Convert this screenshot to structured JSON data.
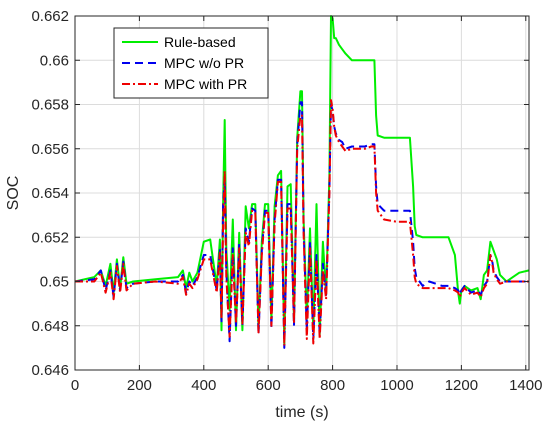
{
  "chart_data": {
    "type": "line",
    "title": "",
    "xlabel": "time (s)",
    "ylabel": "SOC",
    "xlim": [
      0,
      1410
    ],
    "ylim": [
      0.646,
      0.662
    ],
    "xticks": [
      0,
      200,
      400,
      600,
      800,
      1000,
      1200,
      1400
    ],
    "xtick_labels": [
      "0",
      "200",
      "400",
      "600",
      "800",
      "1000",
      "1200",
      "1400"
    ],
    "yticks": [
      0.646,
      0.648,
      0.65,
      0.652,
      0.654,
      0.656,
      0.658,
      0.66,
      0.662
    ],
    "ytick_labels": [
      "0.646",
      "0.648",
      "0.65",
      "0.652",
      "0.654",
      "0.656",
      "0.658",
      "0.66",
      "0.662"
    ],
    "grid": true,
    "legend_position": "top-left",
    "series": [
      {
        "name": "Rule-based",
        "color": "#00ee00",
        "dash": "solid",
        "x": [
          0,
          60,
          80,
          95,
          110,
          120,
          130,
          140,
          150,
          160,
          180,
          250,
          320,
          335,
          345,
          355,
          365,
          380,
          400,
          420,
          440,
          450,
          455,
          460,
          465,
          470,
          480,
          490,
          500,
          510,
          520,
          530,
          540,
          550,
          560,
          570,
          580,
          590,
          600,
          610,
          620,
          630,
          640,
          650,
          660,
          670,
          680,
          690,
          700,
          705,
          710,
          720,
          730,
          740,
          750,
          760,
          770,
          780,
          790,
          795,
          800,
          805,
          810,
          820,
          830,
          840,
          860,
          880,
          900,
          920,
          930,
          935,
          940,
          960,
          1000,
          1040,
          1050,
          1055,
          1060,
          1080,
          1100,
          1140,
          1160,
          1180,
          1190,
          1195,
          1200,
          1210,
          1230,
          1250,
          1260,
          1270,
          1280,
          1290,
          1295,
          1300,
          1310,
          1320,
          1340,
          1360,
          1380,
          1410
        ],
        "y": [
          0.65,
          0.6502,
          0.6505,
          0.6498,
          0.6508,
          0.6495,
          0.651,
          0.6497,
          0.6511,
          0.6499,
          0.65,
          0.6501,
          0.6502,
          0.6505,
          0.6497,
          0.6504,
          0.65,
          0.6504,
          0.6518,
          0.6519,
          0.6498,
          0.6519,
          0.6478,
          0.6535,
          0.6573,
          0.6515,
          0.6487,
          0.6528,
          0.6478,
          0.6522,
          0.6478,
          0.6534,
          0.6524,
          0.6535,
          0.6535,
          0.6479,
          0.6518,
          0.6535,
          0.6535,
          0.6482,
          0.6534,
          0.6548,
          0.655,
          0.6472,
          0.6543,
          0.6544,
          0.6482,
          0.6565,
          0.6586,
          0.6586,
          0.6528,
          0.6483,
          0.6524,
          0.6478,
          0.6535,
          0.6476,
          0.6518,
          0.6494,
          0.6548,
          0.662,
          0.6619,
          0.661,
          0.661,
          0.6607,
          0.6605,
          0.6603,
          0.66,
          0.66,
          0.66,
          0.66,
          0.66,
          0.6575,
          0.6566,
          0.6565,
          0.6565,
          0.6565,
          0.6543,
          0.6525,
          0.6521,
          0.652,
          0.652,
          0.652,
          0.652,
          0.6512,
          0.6495,
          0.649,
          0.6496,
          0.6498,
          0.6496,
          0.6497,
          0.6492,
          0.6503,
          0.6505,
          0.6518,
          0.6516,
          0.6514,
          0.651,
          0.6503,
          0.65,
          0.6502,
          0.6504,
          0.6505
        ]
      },
      {
        "name": "MPC w/o PR",
        "color": "#0000ee",
        "dash": "8,5",
        "x": [
          0,
          60,
          80,
          95,
          110,
          120,
          130,
          140,
          150,
          160,
          180,
          250,
          320,
          335,
          345,
          355,
          365,
          380,
          400,
          420,
          440,
          450,
          455,
          460,
          465,
          470,
          480,
          490,
          500,
          510,
          520,
          530,
          540,
          550,
          560,
          570,
          580,
          590,
          600,
          610,
          620,
          630,
          640,
          650,
          660,
          670,
          680,
          690,
          700,
          705,
          710,
          720,
          730,
          740,
          750,
          760,
          770,
          780,
          790,
          795,
          800,
          805,
          810,
          820,
          830,
          840,
          860,
          880,
          900,
          920,
          930,
          935,
          940,
          960,
          1000,
          1040,
          1050,
          1055,
          1060,
          1080,
          1100,
          1140,
          1160,
          1180,
          1190,
          1195,
          1200,
          1210,
          1230,
          1250,
          1260,
          1270,
          1280,
          1290,
          1295,
          1300,
          1310,
          1320,
          1340,
          1360,
          1380,
          1410
        ],
        "y": [
          0.65,
          0.6501,
          0.6505,
          0.6496,
          0.6505,
          0.6493,
          0.6508,
          0.6496,
          0.6509,
          0.6497,
          0.6499,
          0.65,
          0.65,
          0.6503,
          0.6495,
          0.65,
          0.6498,
          0.6502,
          0.6512,
          0.6512,
          0.6496,
          0.6515,
          0.6482,
          0.6535,
          0.6547,
          0.6505,
          0.6473,
          0.6515,
          0.648,
          0.6517,
          0.648,
          0.6524,
          0.6518,
          0.6533,
          0.6532,
          0.6476,
          0.6514,
          0.6532,
          0.6532,
          0.6479,
          0.6528,
          0.6546,
          0.6546,
          0.647,
          0.6535,
          0.6535,
          0.648,
          0.6562,
          0.6581,
          0.6581,
          0.6524,
          0.6478,
          0.6518,
          0.6474,
          0.6512,
          0.6476,
          0.6508,
          0.6494,
          0.6542,
          0.658,
          0.6577,
          0.657,
          0.6567,
          0.6564,
          0.6563,
          0.656,
          0.6561,
          0.6561,
          0.6561,
          0.6562,
          0.6562,
          0.6543,
          0.6535,
          0.6532,
          0.6532,
          0.6532,
          0.6518,
          0.6506,
          0.6502,
          0.6498,
          0.65,
          0.6498,
          0.6498,
          0.6497,
          0.6496,
          0.6494,
          0.6496,
          0.6498,
          0.6495,
          0.6496,
          0.6494,
          0.6498,
          0.65,
          0.6512,
          0.651,
          0.6505,
          0.6502,
          0.65,
          0.65,
          0.65,
          0.65,
          0.65
        ]
      },
      {
        "name": "MPC with PR",
        "color": "#ee0000",
        "dash": "8,3,2,3",
        "x": [
          0,
          60,
          80,
          95,
          110,
          120,
          130,
          140,
          150,
          160,
          180,
          250,
          320,
          335,
          345,
          355,
          365,
          380,
          400,
          420,
          440,
          450,
          455,
          460,
          465,
          470,
          480,
          490,
          500,
          510,
          520,
          530,
          540,
          550,
          560,
          570,
          580,
          590,
          600,
          610,
          620,
          630,
          640,
          650,
          660,
          670,
          680,
          690,
          700,
          705,
          710,
          720,
          730,
          740,
          750,
          760,
          770,
          780,
          790,
          795,
          800,
          805,
          810,
          820,
          830,
          840,
          860,
          880,
          900,
          920,
          930,
          935,
          940,
          960,
          1000,
          1040,
          1050,
          1055,
          1060,
          1080,
          1100,
          1140,
          1160,
          1180,
          1190,
          1195,
          1200,
          1210,
          1230,
          1250,
          1260,
          1270,
          1280,
          1290,
          1295,
          1300,
          1310,
          1320,
          1340,
          1360,
          1380,
          1410
        ],
        "y": [
          0.65,
          0.65,
          0.6504,
          0.6495,
          0.6504,
          0.6492,
          0.6507,
          0.6495,
          0.6508,
          0.6496,
          0.6499,
          0.65,
          0.6499,
          0.6502,
          0.6494,
          0.6499,
          0.6497,
          0.6501,
          0.651,
          0.651,
          0.6495,
          0.6513,
          0.6483,
          0.6525,
          0.655,
          0.6502,
          0.6475,
          0.6512,
          0.6481,
          0.6515,
          0.6481,
          0.6522,
          0.6516,
          0.6532,
          0.6531,
          0.6477,
          0.6512,
          0.6531,
          0.6531,
          0.648,
          0.6526,
          0.6545,
          0.6545,
          0.6471,
          0.6533,
          0.6533,
          0.6481,
          0.656,
          0.6575,
          0.6575,
          0.6522,
          0.6474,
          0.6515,
          0.6472,
          0.651,
          0.6474,
          0.6505,
          0.6492,
          0.654,
          0.6582,
          0.6578,
          0.657,
          0.6566,
          0.6563,
          0.6561,
          0.6559,
          0.656,
          0.656,
          0.656,
          0.6561,
          0.6561,
          0.654,
          0.6532,
          0.6528,
          0.6527,
          0.6527,
          0.6512,
          0.6502,
          0.6499,
          0.6497,
          0.6497,
          0.6497,
          0.6497,
          0.6496,
          0.6495,
          0.6493,
          0.6495,
          0.6497,
          0.6494,
          0.6495,
          0.6493,
          0.6497,
          0.6499,
          0.6512,
          0.6509,
          0.6504,
          0.6501,
          0.6499,
          0.65,
          0.65,
          0.65,
          0.65
        ]
      }
    ]
  }
}
